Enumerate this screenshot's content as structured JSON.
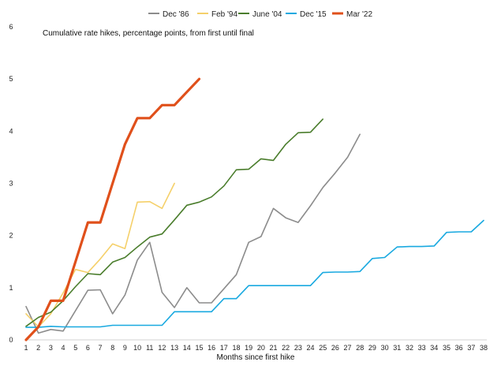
{
  "chart_data": {
    "type": "line",
    "title": "",
    "subtitle": "Cumulative rate hikes, percentage points, from first until final",
    "xlabel": "Months since first hike",
    "ylabel": "",
    "ylim": [
      0,
      6
    ],
    "xlim": [
      1,
      38
    ],
    "y_ticks": [
      0,
      1,
      2,
      3,
      4,
      5,
      6
    ],
    "x_ticks": [
      1,
      2,
      3,
      4,
      5,
      6,
      7,
      8,
      9,
      10,
      11,
      12,
      13,
      14,
      15,
      16,
      17,
      18,
      19,
      20,
      21,
      22,
      23,
      24,
      25,
      26,
      27,
      28,
      29,
      30,
      31,
      32,
      33,
      34,
      35,
      36,
      37,
      38
    ],
    "grid": false,
    "legend_position": "top",
    "series": [
      {
        "name": "Dec '86",
        "color": "#8c8c8c",
        "x": [
          1,
          2,
          3,
          4,
          5,
          6,
          7,
          8,
          9,
          10,
          11,
          12,
          13,
          14,
          15,
          16,
          17,
          18,
          19,
          20,
          21,
          22,
          23,
          24,
          25,
          26,
          27,
          28
        ],
        "values": [
          0.64,
          0.13,
          0.2,
          0.17,
          0.56,
          0.95,
          0.96,
          0.5,
          0.86,
          1.53,
          1.87,
          0.91,
          0.62,
          1.0,
          0.71,
          0.71,
          0.98,
          1.25,
          1.87,
          1.98,
          2.52,
          2.34,
          2.25,
          2.57,
          2.92,
          3.2,
          3.5,
          3.94
        ]
      },
      {
        "name": "Feb '94",
        "color": "#f5d06a",
        "x": [
          1,
          2,
          3,
          4,
          5,
          6,
          7,
          8,
          9,
          10,
          11,
          12,
          13
        ],
        "values": [
          0.5,
          0.25,
          0.5,
          0.9,
          1.35,
          1.29,
          1.55,
          1.84,
          1.75,
          2.64,
          2.65,
          2.52,
          3.0
        ]
      },
      {
        "name": "June '04",
        "color": "#4a7d2c",
        "x": [
          1,
          2,
          3,
          4,
          5,
          6,
          7,
          8,
          9,
          10,
          11,
          12,
          13,
          14,
          15,
          16,
          17,
          18,
          19,
          20,
          21,
          22,
          23,
          24,
          25
        ],
        "values": [
          0.26,
          0.43,
          0.53,
          0.75,
          1.02,
          1.27,
          1.25,
          1.49,
          1.58,
          1.78,
          1.97,
          2.03,
          2.3,
          2.58,
          2.64,
          2.74,
          2.95,
          3.26,
          3.27,
          3.47,
          3.44,
          3.75,
          3.97,
          3.98,
          4.23
        ]
      },
      {
        "name": "Dec '15",
        "color": "#19a9e0",
        "x": [
          1,
          2,
          3,
          4,
          5,
          6,
          7,
          8,
          9,
          10,
          11,
          12,
          13,
          14,
          15,
          16,
          17,
          18,
          19,
          20,
          21,
          22,
          23,
          24,
          25,
          26,
          27,
          28,
          29,
          30,
          31,
          32,
          33,
          34,
          35,
          36,
          37,
          38
        ],
        "values": [
          0.24,
          0.24,
          0.26,
          0.25,
          0.25,
          0.25,
          0.25,
          0.28,
          0.28,
          0.28,
          0.28,
          0.28,
          0.54,
          0.54,
          0.54,
          0.54,
          0.79,
          0.79,
          1.04,
          1.04,
          1.04,
          1.04,
          1.04,
          1.04,
          1.29,
          1.3,
          1.3,
          1.31,
          1.56,
          1.58,
          1.78,
          1.79,
          1.79,
          1.8,
          2.06,
          2.07,
          2.07,
          2.29
        ]
      },
      {
        "name": "Mar '22",
        "color": "#e0501b",
        "bold": true,
        "x": [
          1,
          2,
          3,
          4,
          5,
          6,
          7,
          8,
          9,
          10,
          11,
          12,
          13,
          14,
          15
        ],
        "values": [
          0.0,
          0.25,
          0.75,
          0.75,
          1.5,
          2.25,
          2.25,
          3.0,
          3.75,
          4.25,
          4.25,
          4.5,
          4.5,
          4.75,
          5.0
        ]
      }
    ]
  }
}
